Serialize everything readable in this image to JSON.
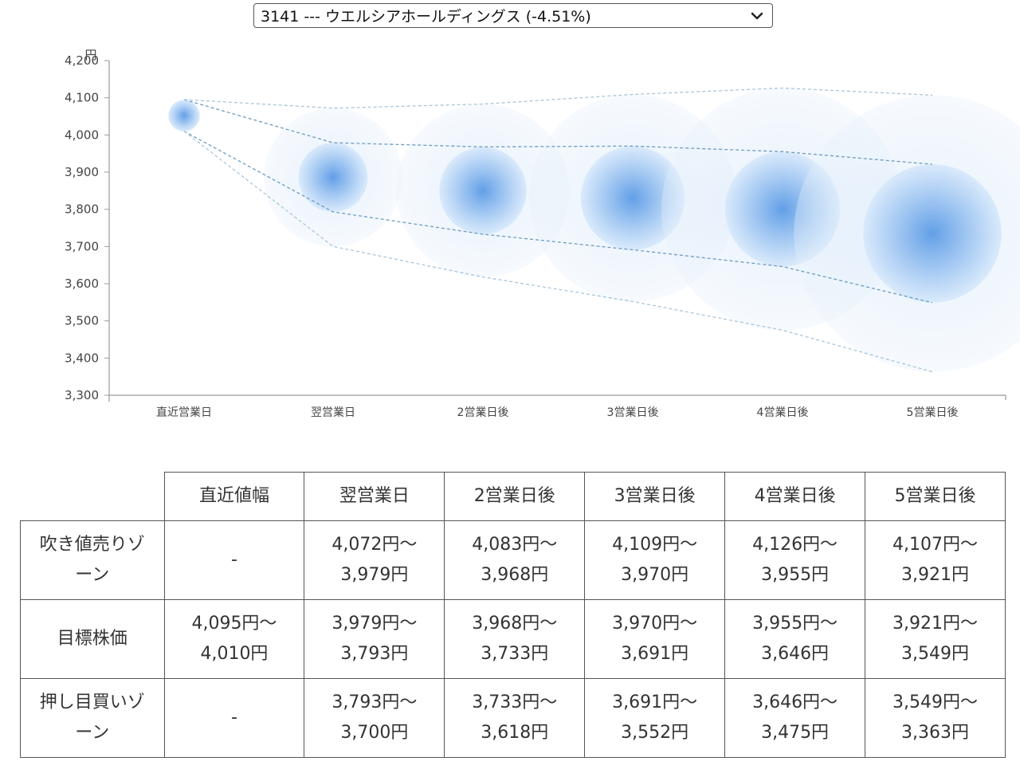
{
  "selector": {
    "value": "3141 --- ウエルシアホールディングス (-4.51%)",
    "icon": "chevron-down-icon"
  },
  "colors": {
    "bubble_core": "#5b9be6",
    "bubble_halo": "#cfe3f8",
    "line_mid": "#6d9bbf",
    "line_outer": "#a9c6dc",
    "axis": "#999999"
  },
  "chart_data": {
    "type": "scatter",
    "yunit": "円",
    "ylim": [
      3300,
      4200
    ],
    "yticks": [
      "4,200",
      "4,100",
      "4,000",
      "3,900",
      "3,800",
      "3,700",
      "3,600",
      "3,500",
      "3,400",
      "3,300"
    ],
    "categories": [
      "直近営業日",
      "翌営業日",
      "2営業日後",
      "3営業日後",
      "4営業日後",
      "5営業日後"
    ],
    "center": [
      4052,
      3886,
      3850,
      3830,
      3800,
      3735
    ],
    "target_range": [
      [
        4095,
        4010
      ],
      [
        3979,
        3793
      ],
      [
        3968,
        3733
      ],
      [
        3970,
        3691
      ],
      [
        3955,
        3646
      ],
      [
        3921,
        3549
      ]
    ],
    "outer_range": [
      [
        4095,
        4010
      ],
      [
        4072,
        3700
      ],
      [
        4083,
        3618
      ],
      [
        4109,
        3552
      ],
      [
        4126,
        3475
      ],
      [
        4107,
        3363
      ]
    ],
    "grid": false,
    "legend": "none"
  },
  "table": {
    "headers": [
      "",
      "直近値幅",
      "翌営業日",
      "2営業日後",
      "3営業日後",
      "4営業日後",
      "5営業日後"
    ],
    "rows": [
      {
        "label": [
          "吹き値売りゾ",
          "ーン"
        ],
        "cells": [
          [
            "-"
          ],
          [
            "4,072円〜",
            "3,979円"
          ],
          [
            "4,083円〜",
            "3,968円"
          ],
          [
            "4,109円〜",
            "3,970円"
          ],
          [
            "4,126円〜",
            "3,955円"
          ],
          [
            "4,107円〜",
            "3,921円"
          ]
        ]
      },
      {
        "label": [
          "目標株価"
        ],
        "cells": [
          [
            "4,095円〜",
            "4,010円"
          ],
          [
            "3,979円〜",
            "3,793円"
          ],
          [
            "3,968円〜",
            "3,733円"
          ],
          [
            "3,970円〜",
            "3,691円"
          ],
          [
            "3,955円〜",
            "3,646円"
          ],
          [
            "3,921円〜",
            "3,549円"
          ]
        ]
      },
      {
        "label": [
          "押し目買いゾ",
          "ーン"
        ],
        "cells": [
          [
            "-"
          ],
          [
            "3,793円〜",
            "3,700円"
          ],
          [
            "3,733円〜",
            "3,618円"
          ],
          [
            "3,691円〜",
            "3,552円"
          ],
          [
            "3,646円〜",
            "3,475円"
          ],
          [
            "3,549円〜",
            "3,363円"
          ]
        ]
      }
    ]
  }
}
